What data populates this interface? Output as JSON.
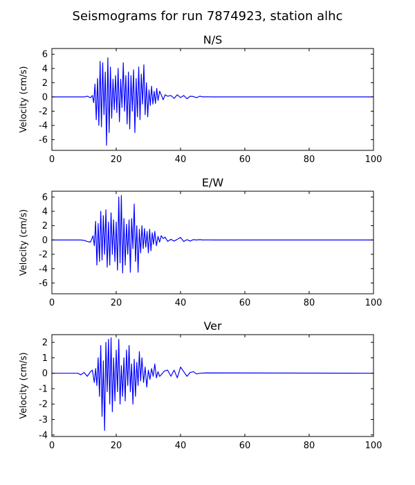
{
  "figure": {
    "title": "Seismograms for run 7874923, station alhc",
    "line_color": "#0000ff"
  },
  "chart_data": [
    {
      "type": "line",
      "title": "N/S",
      "ylabel": "Velocity (cm/s)",
      "xlim": [
        0,
        100
      ],
      "ylim": [
        -7.5,
        6.8
      ],
      "xticks": [
        0,
        20,
        40,
        60,
        80,
        100
      ],
      "yticks": [
        -6,
        -4,
        -2,
        0,
        2,
        4,
        6
      ],
      "series": [
        {
          "x": [
            0,
            10,
            11,
            12,
            12.6,
            13,
            13.4,
            13.8,
            14.2,
            14.6,
            15.0,
            15.4,
            15.8,
            16.2,
            16.6,
            17.0,
            17.4,
            17.8,
            18.2,
            18.6,
            19.0,
            19.4,
            19.8,
            20.2,
            20.6,
            21.0,
            21.4,
            21.8,
            22.2,
            22.6,
            23.0,
            23.4,
            23.8,
            24.2,
            24.6,
            25.0,
            25.4,
            25.8,
            26.2,
            26.6,
            27.0,
            27.4,
            27.8,
            28.2,
            28.6,
            29.0,
            29.4,
            29.8,
            30.2,
            30.6,
            31.0,
            31.4,
            31.8,
            32.2,
            32.6,
            33.0,
            33.5,
            34.0,
            34.6,
            35.2,
            36.0,
            37.0,
            38.0,
            39.0,
            40.0,
            41.0,
            42.0,
            43.0,
            44.0,
            45.0,
            46.0,
            47.0,
            48.0,
            50.0,
            100
          ],
          "y": [
            0,
            0,
            0.1,
            -0.1,
            0.2,
            -0.8,
            1.8,
            -3.2,
            2.6,
            -4.0,
            5.0,
            -4.2,
            4.8,
            -2.5,
            3.5,
            -6.8,
            5.5,
            -5.0,
            4.2,
            -3.0,
            2.5,
            -1.8,
            3.0,
            -2.2,
            4.0,
            -3.5,
            2.5,
            -1.5,
            4.8,
            -2.0,
            3.0,
            -3.8,
            3.5,
            -4.5,
            3.0,
            -2.0,
            3.8,
            -5.0,
            2.6,
            -2.8,
            4.2,
            -3.2,
            3.2,
            -1.0,
            4.5,
            -2.5,
            2.0,
            -2.8,
            1.0,
            -1.2,
            1.5,
            -1.0,
            0.8,
            -0.9,
            1.2,
            -0.5,
            0.8,
            0.3,
            -0.4,
            0.3,
            0.1,
            0.2,
            -0.2,
            0.3,
            -0.1,
            0.2,
            -0.25,
            0.1,
            0.05,
            -0.1,
            0.1,
            0.0,
            0.02,
            0,
            0
          ]
        }
      ]
    },
    {
      "type": "line",
      "title": "E/W",
      "ylabel": "Velocity (cm/s)",
      "xlim": [
        0,
        100
      ],
      "ylim": [
        -7.5,
        6.8
      ],
      "xticks": [
        0,
        20,
        40,
        60,
        80,
        100
      ],
      "yticks": [
        -6,
        -4,
        -2,
        0,
        2,
        4,
        6
      ],
      "series": [
        {
          "x": [
            0,
            9,
            10,
            11,
            12,
            12.8,
            13.2,
            13.6,
            14.0,
            14.4,
            14.8,
            15.2,
            15.6,
            16.0,
            16.4,
            16.8,
            17.2,
            17.6,
            18.0,
            18.4,
            18.8,
            19.2,
            19.6,
            20.0,
            20.4,
            20.8,
            21.2,
            21.6,
            22.0,
            22.4,
            22.8,
            23.2,
            23.6,
            24.0,
            24.4,
            24.8,
            25.2,
            25.6,
            26.0,
            26.4,
            26.8,
            27.2,
            27.6,
            28.0,
            28.4,
            28.8,
            29.2,
            29.6,
            30.0,
            30.4,
            30.8,
            31.2,
            31.6,
            32.0,
            32.5,
            33.0,
            33.5,
            34.0,
            34.6,
            35.2,
            36.0,
            37.0,
            38.0,
            39.0,
            40.0,
            41.0,
            42.0,
            43.0,
            44.0,
            45.0,
            46.0,
            47.0,
            48.0,
            50.0,
            100
          ],
          "y": [
            0,
            0,
            -0.05,
            -0.2,
            -0.3,
            0.6,
            -0.8,
            2.6,
            -3.5,
            2.3,
            -3.0,
            4.0,
            -2.8,
            3.4,
            -2.0,
            4.2,
            -3.8,
            2.5,
            -3.5,
            3.8,
            -2.0,
            2.8,
            -3.0,
            2.5,
            -4.2,
            6.0,
            -3.2,
            6.2,
            -4.6,
            3.0,
            -3.5,
            2.2,
            -2.0,
            2.8,
            -4.5,
            3.0,
            -1.2,
            5.0,
            -3.0,
            2.0,
            -4.5,
            1.5,
            -1.8,
            2.0,
            -1.2,
            1.6,
            -1.0,
            1.2,
            -1.8,
            1.5,
            -1.5,
            1.0,
            -0.6,
            1.2,
            -0.8,
            0.5,
            -0.3,
            0.6,
            0.2,
            0.4,
            -0.2,
            0.1,
            -0.15,
            0.1,
            0.35,
            -0.2,
            0.05,
            -0.15,
            0.05,
            0.0,
            0.05,
            0.0,
            0.02,
            0,
            0
          ]
        }
      ]
    },
    {
      "type": "line",
      "title": "Ver",
      "ylabel": "Velocity (cm/s)",
      "xlim": [
        0,
        100
      ],
      "ylim": [
        -4.1,
        2.5
      ],
      "xticks": [
        0,
        20,
        40,
        60,
        80,
        100
      ],
      "yticks": [
        -4,
        -3,
        -2,
        -1,
        0,
        1,
        2
      ],
      "series": [
        {
          "x": [
            0,
            8,
            9,
            10,
            11,
            12,
            12.6,
            13.2,
            13.6,
            14.0,
            14.4,
            14.8,
            15.2,
            15.6,
            16.0,
            16.4,
            16.8,
            17.2,
            17.6,
            18.0,
            18.4,
            18.8,
            19.2,
            19.6,
            20.0,
            20.4,
            20.8,
            21.2,
            21.6,
            22.0,
            22.4,
            22.8,
            23.2,
            23.6,
            24.0,
            24.4,
            24.8,
            25.2,
            25.6,
            26.0,
            26.4,
            26.8,
            27.2,
            27.6,
            28.0,
            28.5,
            29.0,
            29.5,
            30.0,
            30.5,
            31.0,
            31.5,
            32.0,
            32.5,
            33.0,
            33.5,
            34.0,
            35.0,
            36.0,
            37.0,
            38.0,
            39.0,
            40.0,
            41.0,
            42.0,
            43.0,
            44.0,
            45.0,
            46.0,
            48.0,
            100
          ],
          "y": [
            0,
            0,
            -0.1,
            0.05,
            -0.2,
            0.1,
            0.2,
            -0.6,
            0.3,
            -0.8,
            1.0,
            -1.5,
            1.8,
            -2.8,
            0.8,
            -3.7,
            2.0,
            -1.2,
            2.2,
            -2.0,
            2.3,
            -2.5,
            1.0,
            -1.8,
            1.5,
            -1.2,
            2.2,
            -2.0,
            0.5,
            -1.5,
            1.0,
            -1.8,
            1.5,
            -0.8,
            1.8,
            -1.2,
            0.6,
            -2.0,
            0.9,
            -1.5,
            0.7,
            -0.8,
            1.4,
            -0.5,
            1.0,
            -0.6,
            0.4,
            -0.9,
            0.2,
            -0.4,
            0.3,
            -0.2,
            0.6,
            -0.3,
            0.1,
            -0.2,
            -0.1,
            0.15,
            0.2,
            -0.2,
            0.2,
            -0.3,
            0.4,
            0.1,
            -0.2,
            0.05,
            0.1,
            -0.05,
            0.0,
            0.02,
            0
          ]
        }
      ]
    }
  ]
}
